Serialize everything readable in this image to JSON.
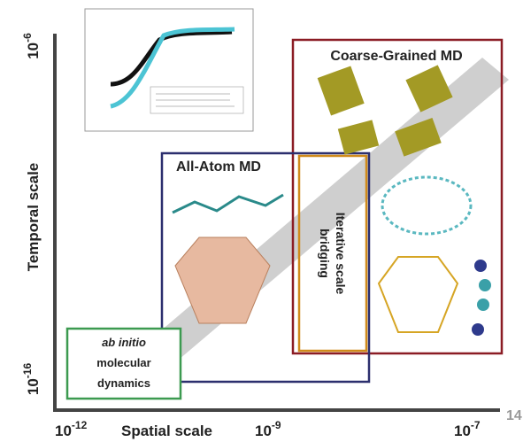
{
  "y_axis": {
    "top_label": {
      "base": "10",
      "exponent": "-6"
    },
    "title": "Temporal scale",
    "bottom_label": {
      "base": "10",
      "exponent": "-16"
    }
  },
  "x_axis": {
    "left_label": {
      "base": "10",
      "exponent": "-12"
    },
    "title": "Spatial scale",
    "middle_label": {
      "base": "10",
      "exponent": "-9"
    },
    "right_label": {
      "base": "10",
      "exponent": "-7"
    }
  },
  "boxes": {
    "coarse_grained": "Coarse-Grained MD",
    "all_atom": "All-Atom MD",
    "bridging": [
      "Iterative scale",
      "bridging"
    ],
    "ab_initio": [
      "ab initio",
      "molecular",
      "dynamics"
    ]
  },
  "page_number": "14"
}
